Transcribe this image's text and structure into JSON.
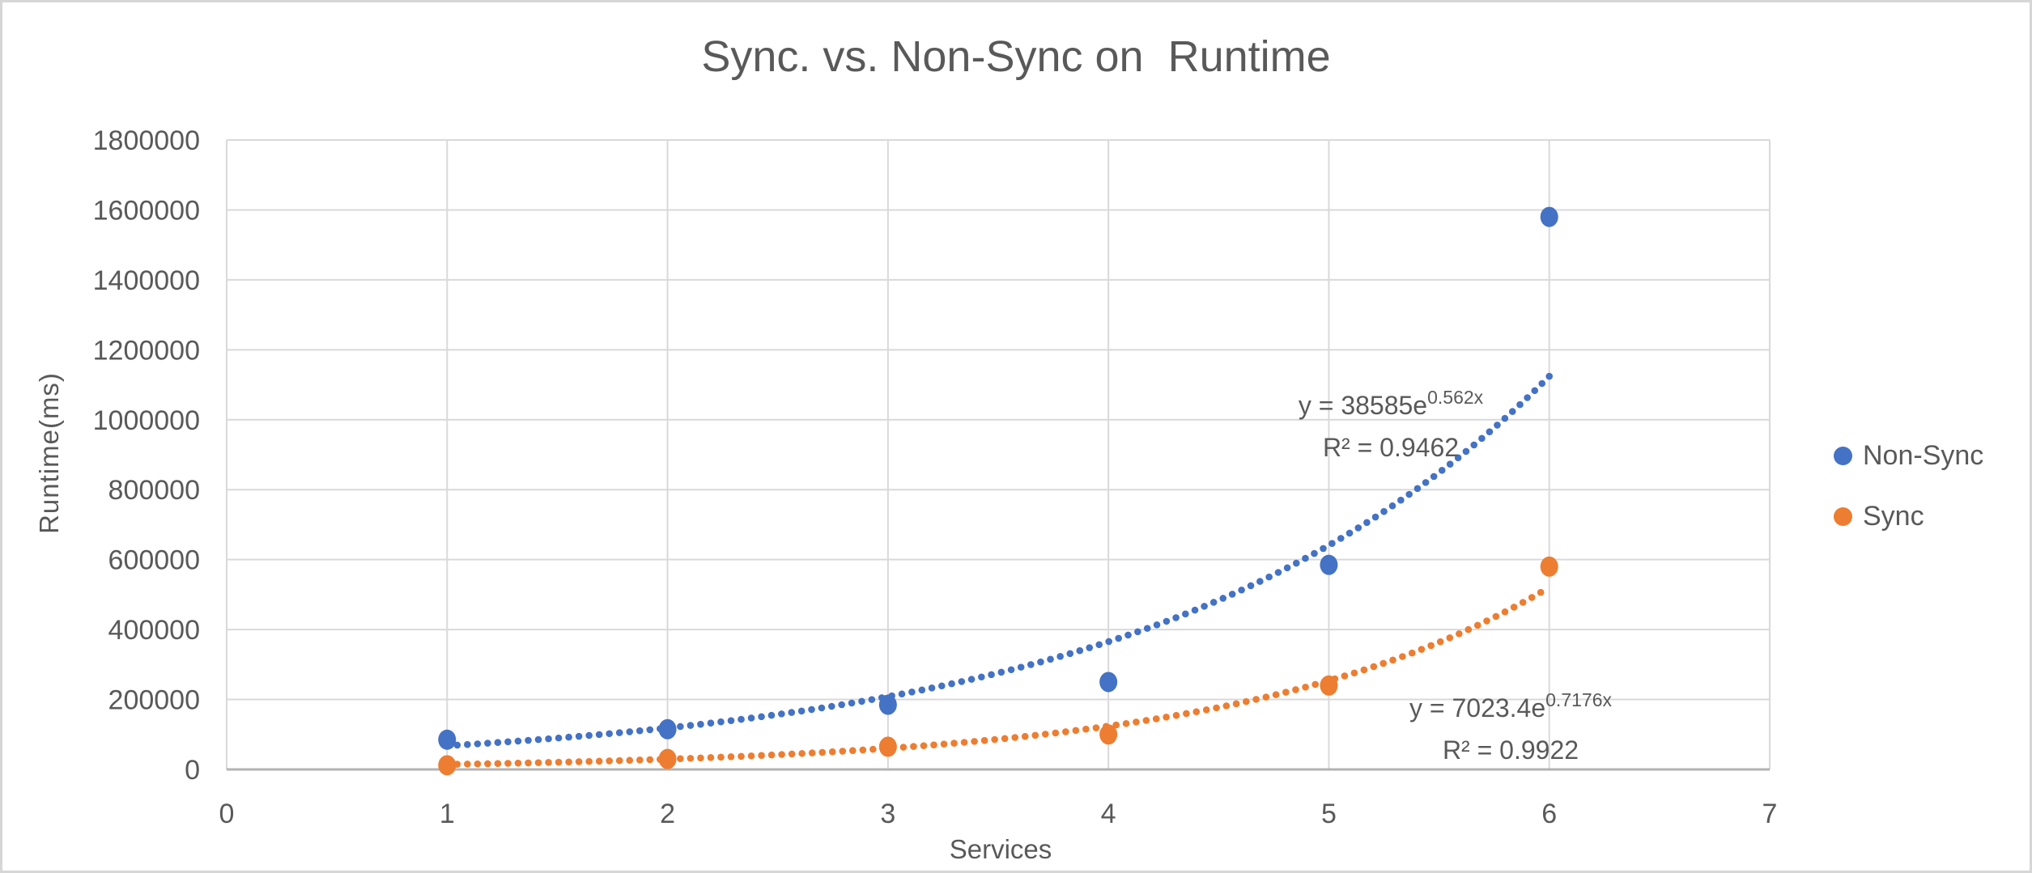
{
  "frame": {
    "background": "#ffffff",
    "border_color": "#d6d6d6"
  },
  "title": "Sync. vs. Non-Sync on  Runtime",
  "chart_data": {
    "type": "scatter",
    "title": "Sync. vs. Non-Sync on  Runtime",
    "xlabel": "Services",
    "ylabel": "Runtime(ms)",
    "xlim": [
      0,
      7
    ],
    "ylim": [
      0,
      1800000
    ],
    "x_ticks": [
      "0",
      "1",
      "2",
      "3",
      "4",
      "5",
      "6",
      "7"
    ],
    "y_ticks": [
      "0",
      "200000",
      "400000",
      "600000",
      "800000",
      "1000000",
      "1200000",
      "1400000",
      "1600000",
      "1800000"
    ],
    "grid": true,
    "gridline_color": "#d9d9d9",
    "axis_color": "#b3b3b3",
    "text_color": "#595959",
    "legend_position": "right",
    "series": [
      {
        "name": "Non-Sync",
        "color": "#4472c4",
        "x": [
          1,
          2,
          3,
          4,
          5,
          6
        ],
        "y": [
          85000,
          115000,
          185000,
          250000,
          585000,
          1580000
        ],
        "trendline": {
          "type": "exponential",
          "coefficient": 38585,
          "exponent_rate": 0.562,
          "x_start": 1,
          "x_end": 6,
          "equation_prefix": "y = 38585e",
          "equation_exponent": "0.562x",
          "r2_label": "R² = 0.9462"
        }
      },
      {
        "name": "Sync",
        "color": "#ed7d31",
        "x": [
          1,
          2,
          3,
          4,
          5,
          6
        ],
        "y": [
          12000,
          30000,
          65000,
          100000,
          240000,
          580000
        ],
        "trendline": {
          "type": "exponential",
          "coefficient": 7023.4,
          "exponent_rate": 0.7176,
          "x_start": 1,
          "x_end": 6,
          "equation_prefix": "y = 7023.4e",
          "equation_exponent": "0.7176x",
          "r2_label": "R² = 0.9922"
        }
      }
    ]
  },
  "legend": {
    "items": [
      {
        "label": "Non-Sync",
        "color": "#4472c4"
      },
      {
        "label": "Sync",
        "color": "#ed7d31"
      }
    ]
  }
}
